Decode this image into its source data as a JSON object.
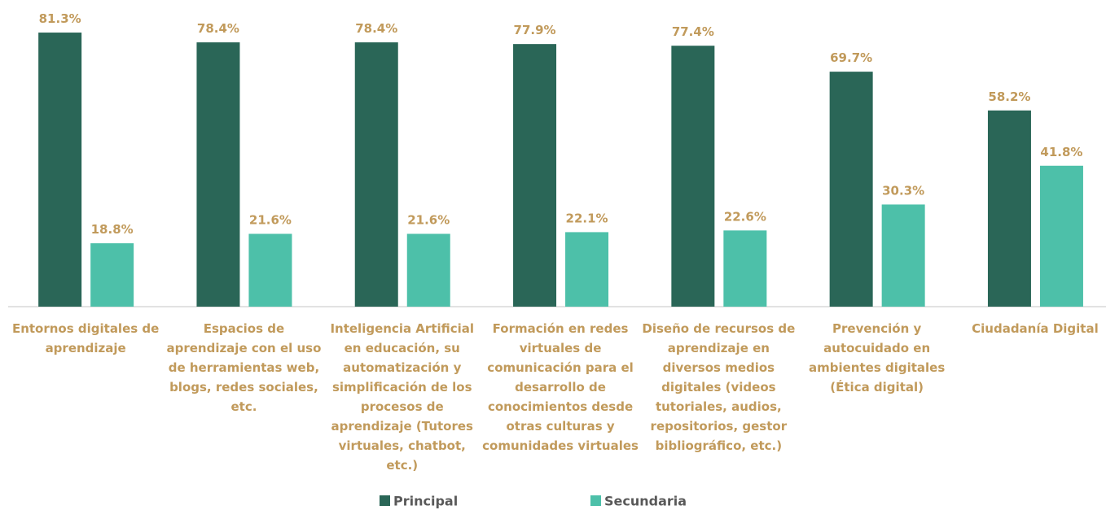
{
  "chart_data": {
    "type": "bar",
    "categories": [
      "Entornos digitales de aprendizaje",
      "Espacios de aprendizaje con el uso de herramientas web, blogs, redes sociales, etc.",
      "Inteligencia Artificial en educación, su automatización y simplificación de los procesos de aprendizaje (Tutores virtuales, chatbot, etc.)",
      "Formación en redes virtuales de comunicación para el desarrollo de conocimientos desde otras culturas y comunidades virtuales",
      "Diseño de recursos de aprendizaje en diversos medios digitales (videos tutoriales, audios, repositorios, gestor bibliográfico, etc.)",
      "Prevención y autocuidado en ambientes digitales (Ética digital)",
      "Ciudadanía Digital"
    ],
    "series": [
      {
        "name": "Principal",
        "color": "#2a6657",
        "values": [
          81.3,
          78.4,
          78.4,
          77.9,
          77.4,
          69.7,
          58.2
        ],
        "value_labels": [
          "81.3%",
          "78.4%",
          "78.4%",
          "77.9%",
          "77.4%",
          "69.7%",
          "58.2%"
        ]
      },
      {
        "name": "Secundaria",
        "color": "#4dc0a9",
        "values": [
          18.8,
          21.6,
          21.6,
          22.1,
          22.6,
          30.3,
          41.8
        ],
        "value_labels": [
          "18.8%",
          "21.6%",
          "21.6%",
          "22.1%",
          "22.6%",
          "30.3%",
          "41.8%"
        ]
      }
    ],
    "ylim": [
      0,
      90
    ],
    "legend": "bottom"
  }
}
